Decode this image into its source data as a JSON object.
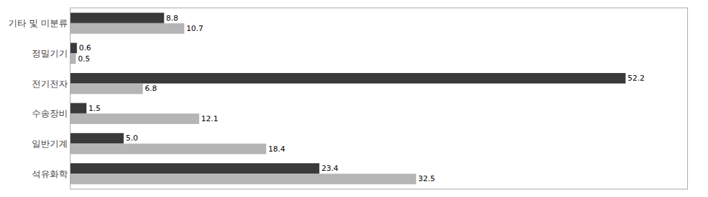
{
  "chart_data": {
    "type": "bar",
    "orientation": "horizontal",
    "categories": [
      "기타 및 미분류",
      "정밀기기",
      "전기전자",
      "수송장비",
      "일반기계",
      "석유화학"
    ],
    "series": [
      {
        "color": "#3a3a3a",
        "values": [
          8.8,
          0.6,
          52.2,
          1.5,
          5.0,
          23.4
        ],
        "value_labels": [
          "8.8",
          "0.6",
          "52.2",
          "1.5",
          "5.0",
          "23.4"
        ]
      },
      {
        "color": "#b5b5b5",
        "values": [
          10.7,
          0.5,
          6.8,
          12.1,
          18.4,
          32.5
        ],
        "value_labels": [
          "10.7",
          "0.5",
          "6.8",
          "12.1",
          "18.4",
          "32.5"
        ]
      }
    ],
    "xlim": [
      0,
      58
    ],
    "xticks": [],
    "grid": false,
    "data_labels": true,
    "tick_labels": "y"
  }
}
